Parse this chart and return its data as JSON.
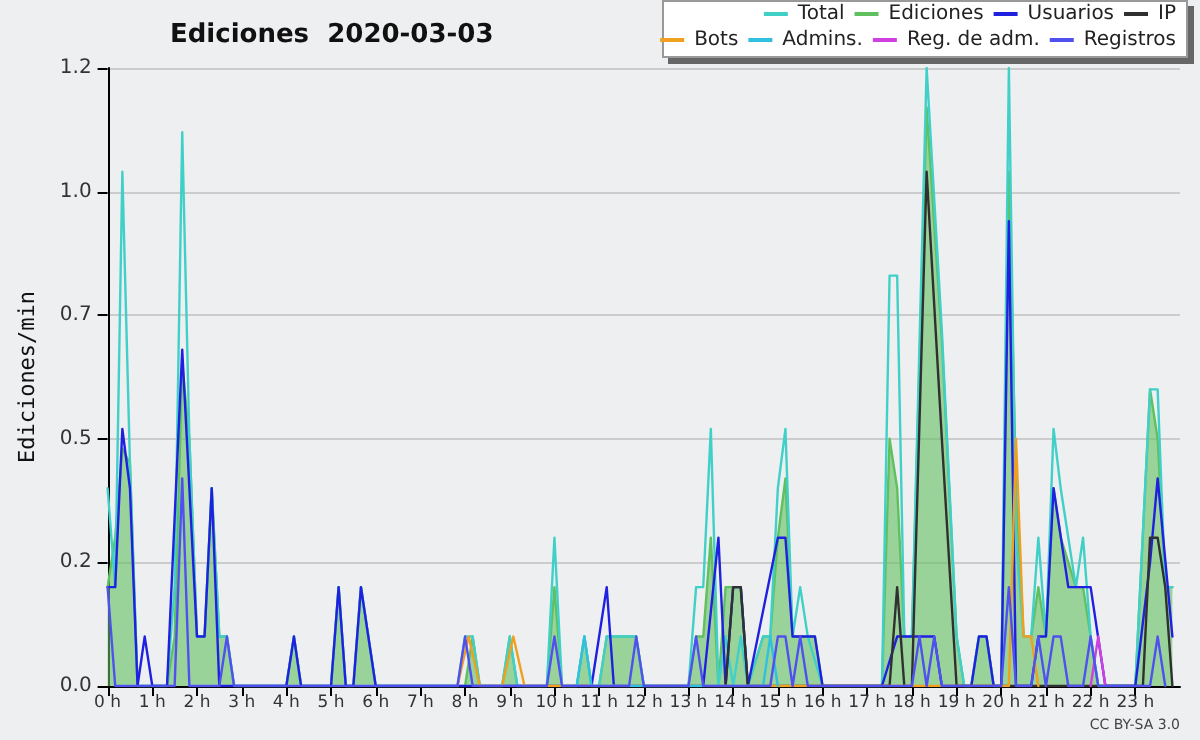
{
  "chart_data": {
    "type": "line",
    "title": "Ediciones  2020-03-03",
    "ylabel": "Ediciones/min",
    "annotations": [
      "CC BY-SA 3.0"
    ],
    "xlim": [
      0,
      24
    ],
    "xticks": [
      {
        "value": 0,
        "label": "0 h"
      },
      {
        "value": 1,
        "label": "1 h"
      },
      {
        "value": 2,
        "label": "2 h"
      },
      {
        "value": 3,
        "label": "3 h"
      },
      {
        "value": 4,
        "label": "4 h"
      },
      {
        "value": 5,
        "label": "5 h"
      },
      {
        "value": 6,
        "label": "6 h"
      },
      {
        "value": 7,
        "label": "7 h"
      },
      {
        "value": 8,
        "label": "8 h"
      },
      {
        "value": 9,
        "label": "9 h"
      },
      {
        "value": 10,
        "label": "10 h"
      },
      {
        "value": 11,
        "label": "11 h"
      },
      {
        "value": 12,
        "label": "12 h"
      },
      {
        "value": 13,
        "label": "13 h"
      },
      {
        "value": 14,
        "label": "14 h"
      },
      {
        "value": 15,
        "label": "15 h"
      },
      {
        "value": 16,
        "label": "16 h"
      },
      {
        "value": 17,
        "label": "17 h"
      },
      {
        "value": 18,
        "label": "18 h"
      },
      {
        "value": 19,
        "label": "19 h"
      },
      {
        "value": 20,
        "label": "20 h"
      },
      {
        "value": 21,
        "label": "21 h"
      },
      {
        "value": 22,
        "label": "22 h"
      },
      {
        "value": 23,
        "label": "23 h"
      }
    ],
    "ylim": [
      0,
      1.25
    ],
    "yticks": [
      {
        "value": 0,
        "label": "0.0"
      },
      {
        "value": 0.25,
        "label": "0.2"
      },
      {
        "value": 0.5,
        "label": "0.5"
      },
      {
        "value": 0.75,
        "label": "0.7"
      },
      {
        "value": 1,
        "label": "1.0"
      },
      {
        "value": 1.25,
        "label": "1.2"
      }
    ],
    "grid": "y",
    "legend": "top right",
    "marker": "none",
    "line_style": "solid",
    "series": [
      {
        "name": "Total",
        "color": "#40d0c8",
        "x": [
          0,
          0.17,
          0.33,
          0.5,
          0.67,
          1.33,
          1.5,
          1.67,
          1.83,
          2,
          2.17,
          2.33,
          2.5,
          2.67,
          2.83,
          4,
          4.17,
          4.33,
          5,
          5.17,
          5.33,
          5.5,
          5.67,
          6,
          7.83,
          8,
          8.17,
          8.33,
          8.83,
          9,
          9.17,
          9.83,
          10,
          10.17,
          10.5,
          10.67,
          10.83,
          11,
          11.17,
          11.33,
          11.5,
          11.83,
          12,
          13,
          13.17,
          13.33,
          13.5,
          13.67,
          13.83,
          14,
          14.17,
          14.33,
          14.67,
          14.83,
          15,
          15.17,
          15.33,
          15.5,
          15.67,
          16,
          17.33,
          17.5,
          17.67,
          17.83,
          18,
          18.33,
          18.67,
          19,
          19.17,
          19.33,
          19.5,
          19.67,
          19.83,
          20,
          20.17,
          20.33,
          20.5,
          20.67,
          20.83,
          21,
          21.17,
          21.33,
          21.67,
          21.83,
          22,
          22.17,
          23,
          23.33,
          23.5,
          23.67,
          23.83
        ],
        "values": [
          0.4,
          0.2,
          1.04,
          0.45,
          0,
          0,
          0.2,
          1.12,
          0.5,
          0.1,
          0.1,
          0.4,
          0.1,
          0.1,
          0,
          0,
          0.1,
          0,
          0,
          0.2,
          0,
          0,
          0.2,
          0,
          0,
          0.1,
          0.1,
          0,
          0,
          0.1,
          0,
          0,
          0.3,
          0,
          0,
          0.1,
          0,
          0,
          0.1,
          0.1,
          0.1,
          0.1,
          0,
          0,
          0.2,
          0.2,
          0.52,
          0,
          0.1,
          0,
          0.1,
          0,
          0.1,
          0.1,
          0.4,
          0.52,
          0.1,
          0.2,
          0.1,
          0,
          0,
          0.83,
          0.83,
          0.1,
          0.1,
          1.25,
          0.72,
          0.1,
          0,
          0,
          0.1,
          0.1,
          0,
          0,
          1.25,
          0.3,
          0.1,
          0.1,
          0.3,
          0.1,
          0.52,
          0.4,
          0.2,
          0.3,
          0.1,
          0,
          0,
          0.6,
          0.6,
          0.2,
          0.2
        ]
      },
      {
        "name": "Ediciones",
        "type": "area",
        "color": "#60c060",
        "x": [
          0,
          0.17,
          0.33,
          0.5,
          0.67,
          1.33,
          1.5,
          1.67,
          1.83,
          2,
          2.17,
          2.33,
          2.5,
          2.67,
          2.83,
          4,
          4.17,
          4.33,
          5,
          5.17,
          5.33,
          5.5,
          5.67,
          6,
          8,
          8.17,
          8.33,
          8.83,
          9,
          9.17,
          9.83,
          10,
          10.17,
          10.5,
          10.67,
          10.83,
          11,
          11.17,
          11.83,
          12,
          13,
          13.17,
          13.33,
          13.5,
          13.67,
          13.83,
          14,
          14.17,
          14.33,
          14.67,
          14.83,
          15,
          15.17,
          15.33,
          15.83,
          16,
          17.33,
          17.5,
          17.67,
          17.83,
          18,
          18.33,
          18.67,
          19,
          19.17,
          19.33,
          19.5,
          19.67,
          19.83,
          20,
          20.17,
          20.33,
          20.5,
          20.67,
          20.83,
          21,
          21.17,
          21.33,
          21.67,
          21.83,
          22,
          22.17,
          23,
          23.33,
          23.5,
          23.67,
          23.83
        ],
        "values": [
          0.2,
          0.3,
          0.48,
          0.45,
          0,
          0,
          0.1,
          0.65,
          0.5,
          0.1,
          0.1,
          0.4,
          0.1,
          0.1,
          0,
          0,
          0.1,
          0,
          0,
          0.2,
          0,
          0,
          0.2,
          0,
          0,
          0.1,
          0,
          0,
          0.1,
          0,
          0,
          0.2,
          0,
          0,
          0.1,
          0,
          0,
          0.1,
          0.1,
          0,
          0,
          0.1,
          0.1,
          0.3,
          0,
          0.2,
          0.2,
          0.2,
          0,
          0.1,
          0.1,
          0.3,
          0.42,
          0.1,
          0.1,
          0,
          0,
          0.5,
          0.4,
          0.1,
          0.1,
          1.17,
          0.7,
          0.1,
          0,
          0,
          0.1,
          0.1,
          0,
          0,
          1.04,
          0.4,
          0.1,
          0.1,
          0.2,
          0.1,
          0.4,
          0.3,
          0.2,
          0.2,
          0.1,
          0,
          0,
          0.6,
          0.5,
          0.2,
          0.2
        ]
      },
      {
        "name": "Usuarios",
        "color": "#2020e0",
        "x": [
          0,
          0.17,
          0.33,
          0.5,
          0.67,
          0.83,
          1,
          1.33,
          1.67,
          1.83,
          2,
          2.17,
          2.33,
          2.5,
          4,
          4.17,
          4.33,
          5,
          5.17,
          5.33,
          5.5,
          5.67,
          6,
          10.83,
          11.17,
          11.33,
          13.33,
          13.67,
          13.83,
          14,
          14.17,
          14.33,
          15,
          15.17,
          15.33,
          15.83,
          16,
          17.33,
          17.67,
          17.83,
          18,
          18.17,
          18.33,
          18.5,
          18.67,
          19.33,
          19.5,
          19.67,
          19.83,
          20,
          20.17,
          20.33,
          20.67,
          20.83,
          21,
          21.17,
          21.5,
          21.83,
          22,
          22.33,
          23,
          23.33,
          23.5,
          23.83
        ],
        "values": [
          0.2,
          0.2,
          0.52,
          0.4,
          0,
          0.1,
          0,
          0,
          0.68,
          0.4,
          0.1,
          0.1,
          0.4,
          0,
          0,
          0.1,
          0,
          0,
          0.2,
          0,
          0,
          0.2,
          0,
          0,
          0.2,
          0,
          0,
          0.3,
          0,
          0.2,
          0.2,
          0,
          0.3,
          0.3,
          0.1,
          0.1,
          0,
          0,
          0.1,
          0.1,
          0.1,
          0.1,
          0.1,
          0.1,
          0,
          0,
          0.1,
          0.1,
          0,
          0,
          0.94,
          0,
          0,
          0.1,
          0.1,
          0.4,
          0.2,
          0.2,
          0.2,
          0,
          0,
          0.25,
          0.42,
          0.1
        ]
      },
      {
        "name": "IP",
        "color": "#303030",
        "x": [
          13.83,
          14,
          14.17,
          14.33,
          17.5,
          17.67,
          17.83,
          18,
          18.33,
          18.67,
          19,
          23.17,
          23.33,
          23.5,
          23.67,
          23.83
        ],
        "values": [
          0,
          0.2,
          0.2,
          0,
          0,
          0.2,
          0,
          0,
          1.04,
          0.5,
          0,
          0,
          0.3,
          0.3,
          0.2,
          0
        ]
      },
      {
        "name": "Bots",
        "color": "#f0a020",
        "x": [
          7.83,
          8.08,
          8.33,
          8.83,
          9.08,
          9.33,
          20.17,
          20.33,
          20.5,
          20.67,
          20.83
        ],
        "values": [
          0,
          0.1,
          0,
          0,
          0.1,
          0,
          0,
          0.5,
          0.1,
          0.1,
          0
        ]
      },
      {
        "name": "Admins.",
        "color": "#30c0e0",
        "x": [
          10.5,
          10.67,
          10.83,
          14.67,
          14.83,
          15
        ],
        "values": [
          0,
          0.1,
          0,
          0,
          0.1,
          0
        ]
      },
      {
        "name": "Reg. de adm.",
        "color": "#d040e0",
        "x": [
          22,
          22.17,
          22.33
        ],
        "values": [
          0,
          0.1,
          0
        ]
      },
      {
        "name": "Registros",
        "color": "#5050f0",
        "x": [
          0,
          0.17,
          1.5,
          1.67,
          1.83,
          2.5,
          2.67,
          2.83,
          7.83,
          8,
          8.17,
          9.83,
          10,
          10.17,
          11.67,
          11.83,
          12,
          13,
          13.17,
          13.33,
          14.83,
          15,
          15.17,
          15.33,
          15.5,
          15.67,
          18,
          18.17,
          18.33,
          18.5,
          18.67,
          20,
          20.17,
          20.33,
          20.67,
          20.83,
          21,
          21.17,
          21.33,
          21.5,
          21.83,
          22,
          22.17,
          23.33,
          23.5,
          23.67
        ],
        "values": [
          0.2,
          0,
          0,
          0.42,
          0,
          0,
          0.1,
          0,
          0,
          0.1,
          0,
          0,
          0.1,
          0,
          0,
          0.1,
          0,
          0,
          0.1,
          0,
          0,
          0.1,
          0.1,
          0,
          0.1,
          0,
          0,
          0.1,
          0,
          0.1,
          0,
          0,
          0.2,
          0,
          0,
          0.1,
          0,
          0.1,
          0.1,
          0,
          0,
          0.1,
          0,
          0,
          0.1,
          0
        ]
      }
    ]
  }
}
